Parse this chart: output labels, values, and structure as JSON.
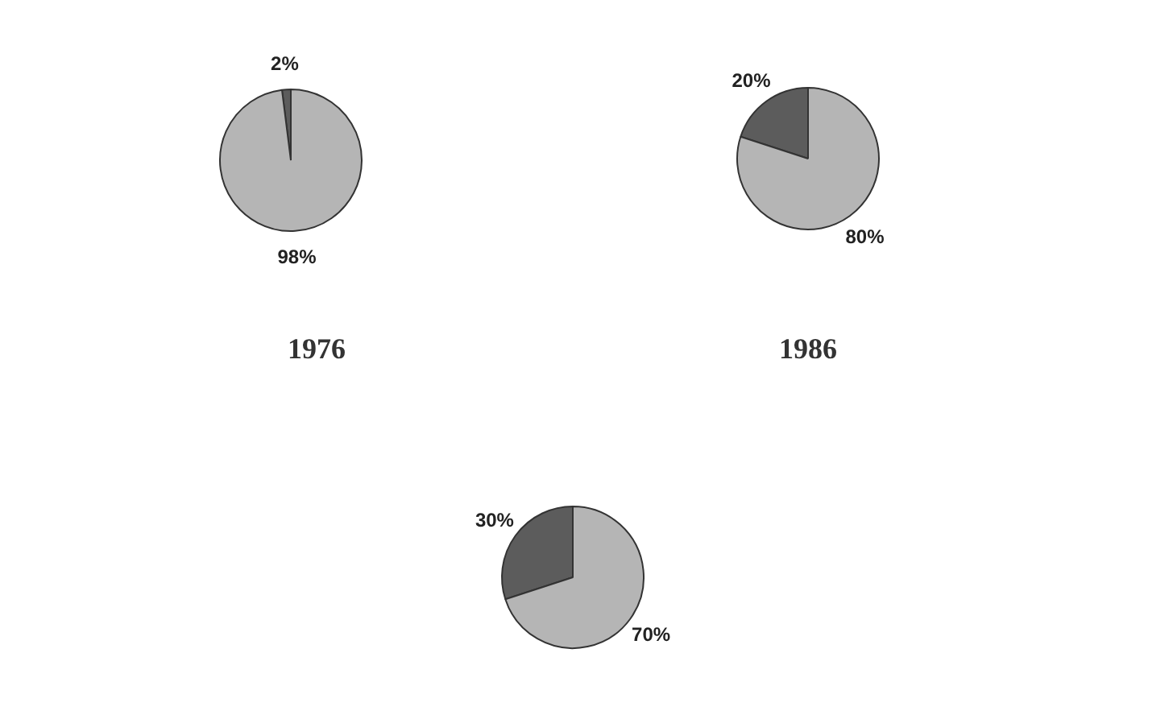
{
  "chart_data": [
    {
      "type": "pie",
      "title": "1976",
      "categories": [
        null,
        null
      ],
      "values": [
        2,
        98
      ],
      "colors": [
        "#5c5c5c",
        "#b5b5b5"
      ],
      "value_labels": [
        "2%",
        "98%"
      ]
    },
    {
      "type": "pie",
      "title": "1986",
      "categories": [
        null,
        null
      ],
      "values": [
        20,
        80
      ],
      "colors": [
        "#5c5c5c",
        "#b5b5b5"
      ],
      "value_labels": [
        "20%",
        "80%"
      ]
    },
    {
      "type": "pie",
      "categories": [
        null,
        null
      ],
      "values": [
        30,
        70
      ],
      "colors": [
        "#5c5c5c",
        "#b5b5b5"
      ],
      "value_labels": [
        "30%",
        "70%"
      ]
    }
  ]
}
